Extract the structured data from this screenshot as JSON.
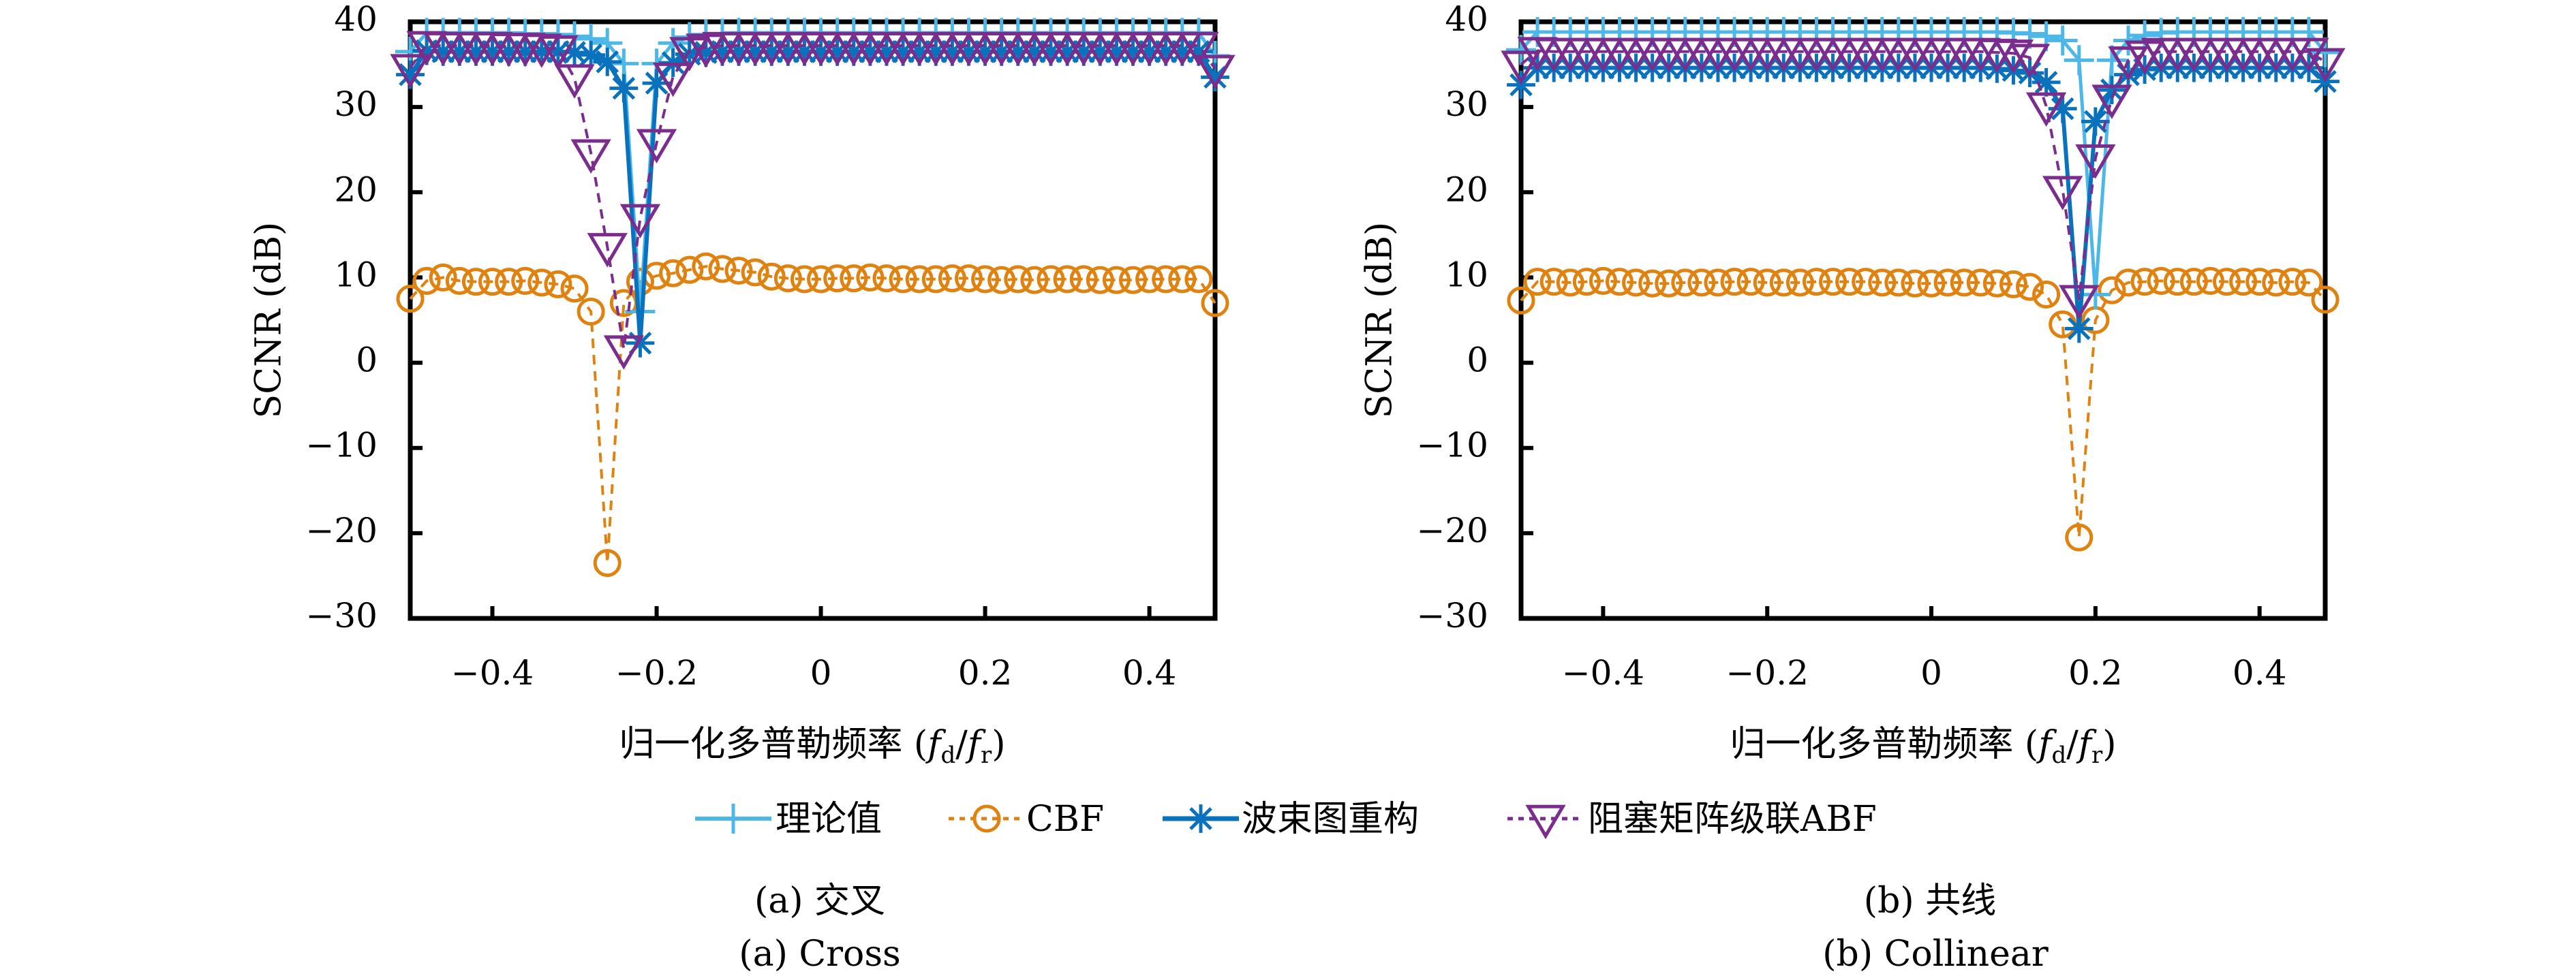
{
  "colors": {
    "theory": "#4db8e8",
    "cbf": "#e0820f",
    "beam": "#0a72bd",
    "abf": "#7b2d8e",
    "axis": "#000000"
  },
  "legend": [
    {
      "key": "theory",
      "label": "理论值",
      "marker": "plus",
      "line": "solid"
    },
    {
      "key": "cbf",
      "label": "CBF",
      "marker": "circle",
      "line": "dashed"
    },
    {
      "key": "beam",
      "label": "波束图重构",
      "marker": "asterisk",
      "line": "solid"
    },
    {
      "key": "abf",
      "label": "阻塞矩阵级联ABF",
      "marker": "triangle-down",
      "line": "dashed"
    }
  ],
  "chart_data": [
    {
      "type": "line",
      "id": "a",
      "caption_cn": "(a) 交叉",
      "caption_en": "(a) Cross",
      "xlabel_prefix": "归一化多普勒频率 (",
      "xlabel_f": "f",
      "xlabel_sub1": "d",
      "xlabel_slash": "/",
      "xlabel_sub2": "r",
      "xlabel_suffix": ")",
      "ylabel": "SCNR (dB)",
      "xlim": [
        -0.5,
        0.48
      ],
      "ylim": [
        -30,
        40
      ],
      "xticks": [
        -0.4,
        -0.2,
        0,
        0.2,
        0.4
      ],
      "xtick_labels": [
        "−0.4",
        "−0.2",
        "0",
        "0.2",
        "0.4"
      ],
      "yticks": [
        -30,
        -20,
        -10,
        0,
        10,
        20,
        30,
        40
      ],
      "ytick_labels": [
        "−30",
        "−20",
        "−10",
        "0",
        "10",
        "20",
        "30",
        "40"
      ],
      "x_start": -0.5,
      "x_step": 0.02,
      "series": [
        {
          "key": "theory",
          "name": "理论值",
          "values": [
            36.5,
            38.7,
            38.7,
            38.7,
            38.7,
            38.7,
            38.7,
            38.6,
            38.6,
            38.5,
            38.3,
            38.0,
            37.5,
            35.1,
            6.0,
            35.1,
            37.5,
            38.2,
            38.5,
            38.6,
            38.7,
            38.7,
            38.7,
            38.7,
            38.7,
            38.7,
            38.7,
            38.7,
            38.7,
            38.7,
            38.7,
            38.7,
            38.7,
            38.7,
            38.7,
            38.7,
            38.7,
            38.7,
            38.7,
            38.7,
            38.7,
            38.7,
            38.7,
            38.7,
            38.7,
            38.7,
            38.7,
            38.7,
            38.7,
            36.0
          ]
        },
        {
          "key": "cbf",
          "name": "CBF",
          "values": [
            7.5,
            9.6,
            10.0,
            9.6,
            9.5,
            9.5,
            9.5,
            9.6,
            9.4,
            9.2,
            8.7,
            6.0,
            -23.5,
            7.0,
            9.5,
            10.2,
            10.5,
            10.9,
            11.3,
            11.0,
            10.8,
            10.6,
            10.1,
            9.9,
            9.8,
            9.8,
            9.9,
            9.9,
            10.0,
            9.9,
            9.8,
            9.8,
            9.8,
            9.9,
            9.9,
            9.8,
            9.7,
            9.8,
            9.7,
            9.8,
            9.8,
            9.8,
            9.7,
            9.7,
            9.7,
            9.8,
            9.8,
            9.8,
            9.8,
            7.0
          ]
        },
        {
          "key": "beam",
          "name": "波束图重构",
          "values": [
            33.8,
            36.6,
            36.5,
            36.5,
            36.5,
            36.5,
            36.5,
            36.5,
            36.5,
            36.5,
            36.4,
            36.1,
            35.3,
            32.2,
            2.3,
            32.8,
            35.2,
            36.2,
            36.4,
            36.5,
            36.5,
            36.5,
            36.5,
            36.5,
            36.5,
            36.5,
            36.5,
            36.5,
            36.5,
            36.5,
            36.5,
            36.5,
            36.5,
            36.5,
            36.5,
            36.5,
            36.5,
            36.5,
            36.5,
            36.5,
            36.5,
            36.5,
            36.5,
            36.5,
            36.5,
            36.5,
            36.5,
            36.5,
            36.5,
            33.5
          ]
        },
        {
          "key": "abf",
          "name": "阻塞矩阵级联ABF",
          "values": [
            34.6,
            37.3,
            37.2,
            37.2,
            37.2,
            37.2,
            37.1,
            37.1,
            37.0,
            36.8,
            33.4,
            24.6,
            13.6,
            1.6,
            17.0,
            25.8,
            33.6,
            36.6,
            37.0,
            37.2,
            37.2,
            37.2,
            37.2,
            37.2,
            37.2,
            37.2,
            37.2,
            37.2,
            37.2,
            37.2,
            37.2,
            37.2,
            37.2,
            37.2,
            37.2,
            37.2,
            37.2,
            37.2,
            37.2,
            37.2,
            37.2,
            37.2,
            37.2,
            37.2,
            37.2,
            37.2,
            37.2,
            37.2,
            37.2,
            34.5
          ]
        }
      ]
    },
    {
      "type": "line",
      "id": "b",
      "caption_cn": "(b) 共线",
      "caption_en": "(b) Collinear",
      "xlabel_prefix": "归一化多普勒频率 (",
      "xlabel_f": "f",
      "xlabel_sub1": "d",
      "xlabel_slash": "/",
      "xlabel_sub2": "r",
      "xlabel_suffix": ")",
      "ylabel": "SCNR (dB)",
      "xlim": [
        -0.5,
        0.48
      ],
      "ylim": [
        -30,
        40
      ],
      "xticks": [
        -0.4,
        -0.2,
        0,
        0.2,
        0.4
      ],
      "xtick_labels": [
        "−0.4",
        "−0.2",
        "0",
        "0.2",
        "0.4"
      ],
      "yticks": [
        -30,
        -20,
        -10,
        0,
        10,
        20,
        30,
        40
      ],
      "ytick_labels": [
        "−30",
        "−20",
        "−10",
        "0",
        "10",
        "20",
        "30",
        "40"
      ],
      "x_start": -0.5,
      "x_step": 0.02,
      "series": [
        {
          "key": "theory",
          "name": "理论值",
          "values": [
            36.7,
            38.8,
            38.8,
            38.8,
            38.8,
            38.8,
            38.8,
            38.8,
            38.8,
            38.8,
            38.8,
            38.8,
            38.8,
            38.8,
            38.8,
            38.8,
            38.8,
            38.8,
            38.8,
            38.8,
            38.8,
            38.8,
            38.8,
            38.8,
            38.8,
            38.8,
            38.8,
            38.8,
            38.8,
            38.8,
            38.7,
            38.6,
            38.3,
            37.8,
            35.5,
            8.0,
            35.5,
            37.8,
            38.4,
            38.7,
            38.8,
            38.8,
            38.8,
            38.8,
            38.8,
            38.8,
            38.8,
            38.8,
            38.8,
            36.4
          ]
        },
        {
          "key": "cbf",
          "name": "CBF",
          "values": [
            7.3,
            9.5,
            9.5,
            9.4,
            9.5,
            9.6,
            9.5,
            9.4,
            9.3,
            9.3,
            9.4,
            9.4,
            9.4,
            9.5,
            9.5,
            9.4,
            9.4,
            9.4,
            9.5,
            9.5,
            9.5,
            9.5,
            9.4,
            9.4,
            9.3,
            9.3,
            9.4,
            9.4,
            9.4,
            9.3,
            9.2,
            8.9,
            8.0,
            4.5,
            -20.5,
            5.0,
            8.5,
            9.4,
            9.5,
            9.6,
            9.5,
            9.5,
            9.6,
            9.5,
            9.5,
            9.5,
            9.4,
            9.5,
            9.4,
            7.4
          ]
        },
        {
          "key": "beam",
          "name": "波束图重构",
          "values": [
            32.6,
            34.6,
            34.6,
            34.6,
            34.6,
            34.6,
            34.6,
            34.6,
            34.6,
            34.6,
            34.6,
            34.6,
            34.6,
            34.6,
            34.6,
            34.6,
            34.6,
            34.6,
            34.6,
            34.6,
            34.6,
            34.6,
            34.6,
            34.6,
            34.6,
            34.6,
            34.6,
            34.6,
            34.6,
            34.5,
            34.3,
            34.0,
            32.9,
            29.8,
            4.0,
            28.3,
            32.0,
            33.8,
            34.4,
            34.6,
            34.6,
            34.6,
            34.6,
            34.6,
            34.6,
            34.6,
            34.6,
            34.6,
            34.6,
            33.0
          ]
        },
        {
          "key": "abf",
          "name": "阻塞矩阵级联ABF",
          "values": [
            35.0,
            36.6,
            36.5,
            36.5,
            36.5,
            36.5,
            36.5,
            36.5,
            36.5,
            36.5,
            36.5,
            36.5,
            36.5,
            36.5,
            36.5,
            36.5,
            36.5,
            36.5,
            36.5,
            36.5,
            36.5,
            36.5,
            36.5,
            36.5,
            36.5,
            36.5,
            36.5,
            36.5,
            36.5,
            36.4,
            36.3,
            35.8,
            30.1,
            20.3,
            7.5,
            24.0,
            31.0,
            35.5,
            36.2,
            36.5,
            36.5,
            36.5,
            36.5,
            36.5,
            36.5,
            36.5,
            36.5,
            36.5,
            36.5,
            35.3
          ]
        }
      ]
    }
  ]
}
